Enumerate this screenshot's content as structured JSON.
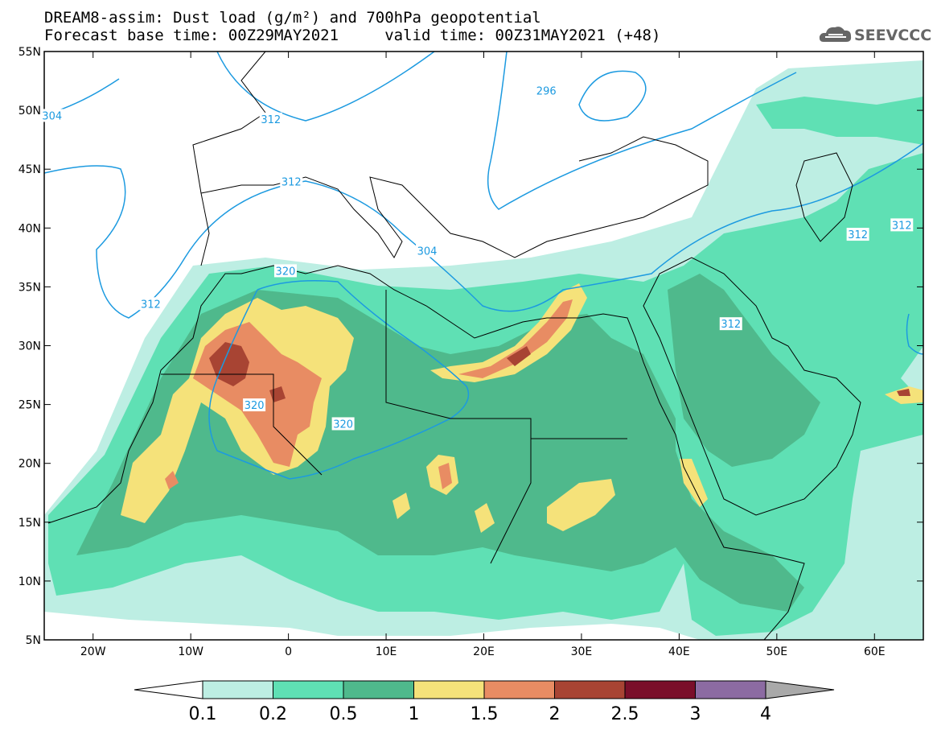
{
  "title": {
    "line1": "DREAM8-assim: Dust load (g/m²) and 700hPa geopotential",
    "line2": "Forecast base time: 00Z29MAY2021     valid time: 00Z31MAY2021 (+48)"
  },
  "logo": {
    "text": "SEEVCCC",
    "icon": "cloud-icon"
  },
  "map": {
    "extent": {
      "lon_min": -25,
      "lon_max": 65,
      "lat_min": 5,
      "lat_max": 55
    },
    "x_ticks": [
      {
        "lon": -20,
        "label": "20W"
      },
      {
        "lon": -10,
        "label": "10W"
      },
      {
        "lon": 0,
        "label": "0"
      },
      {
        "lon": 10,
        "label": "10E"
      },
      {
        "lon": 20,
        "label": "20E"
      },
      {
        "lon": 30,
        "label": "30E"
      },
      {
        "lon": 40,
        "label": "40E"
      },
      {
        "lon": 50,
        "label": "50E"
      },
      {
        "lon": 60,
        "label": "60E"
      }
    ],
    "y_ticks": [
      {
        "lat": 55,
        "label": "55N"
      },
      {
        "lat": 50,
        "label": "50N"
      },
      {
        "lat": 45,
        "label": "45N"
      },
      {
        "lat": 40,
        "label": "40N"
      },
      {
        "lat": 35,
        "label": "35N"
      },
      {
        "lat": 30,
        "label": "30N"
      },
      {
        "lat": 25,
        "label": "25N"
      },
      {
        "lat": 20,
        "label": "20N"
      },
      {
        "lat": 15,
        "label": "15N"
      },
      {
        "lat": 10,
        "label": "10N"
      },
      {
        "lat": 5,
        "label": "5N"
      }
    ],
    "contour_color": "#1c9ae0",
    "contour_labels": [
      {
        "text": "296",
        "lon": 26.4,
        "lat": 51.6
      },
      {
        "text": "304",
        "lon": -24.2,
        "lat": 49.5
      },
      {
        "text": "312",
        "lon": -1.8,
        "lat": 49.2
      },
      {
        "text": "312",
        "lon": 0.3,
        "lat": 43.9
      },
      {
        "lon": 14.2,
        "lat": 38.0,
        "text": "304"
      },
      {
        "lon": 45.3,
        "lat": 31.8,
        "text": "312"
      },
      {
        "lon": 58.3,
        "lat": 39.4,
        "text": "312"
      },
      {
        "lon": 62.8,
        "lat": 40.2,
        "text": "312"
      },
      {
        "lon": -14.1,
        "lat": 33.5,
        "text": "312"
      },
      {
        "lon": -0.3,
        "lat": 36.3,
        "text": "320"
      },
      {
        "lon": -3.5,
        "lat": 24.9,
        "text": "320"
      },
      {
        "lon": 5.6,
        "lat": 23.3,
        "text": "320"
      }
    ]
  },
  "colorbar": {
    "levels": [
      "0.1",
      "0.2",
      "0.5",
      "1",
      "1.5",
      "2",
      "2.5",
      "3",
      "4"
    ],
    "colors": [
      "#ffffff",
      "#bdeee3",
      "#5fe0b4",
      "#4fb98c",
      "#f5e27a",
      "#e88c63",
      "#a84433",
      "#7a0f2a",
      "#8c6ba2",
      "#a9a9a9"
    ]
  },
  "dust_colors": {
    "c01": "#bdeee3",
    "c02": "#5fe0b4",
    "c05": "#4fb98c",
    "c10": "#f5e27a",
    "c15": "#e88c63",
    "c20": "#a84433",
    "c25": "#7a0f2a"
  }
}
